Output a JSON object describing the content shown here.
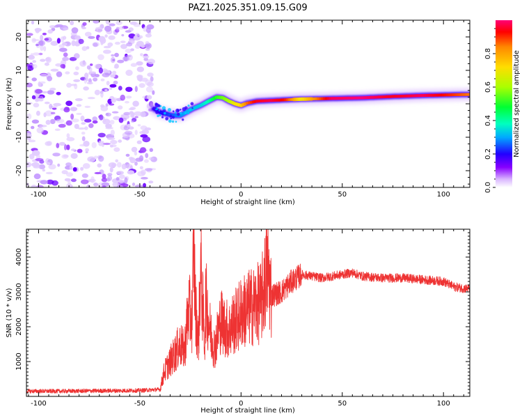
{
  "chart_data": [
    {
      "type": "heatmap",
      "title": "PAZ1.2025.351.09.15.G09",
      "xlabel": "Height of straight line (km)",
      "ylabel": "Frequency (Hz)",
      "xlim": [
        -106,
        113
      ],
      "ylim": [
        -25,
        25
      ],
      "xticks": [
        -100,
        -50,
        0,
        50,
        100
      ],
      "yticks": [
        20,
        10,
        0,
        -10,
        -20
      ],
      "colorbar": {
        "label": "Normalized spectral amplitude",
        "range": [
          0,
          1
        ],
        "ticks": [
          0.0,
          0.2,
          0.4,
          0.6,
          0.8
        ],
        "tick_labels": [
          "0.0",
          "0.2",
          "0.4",
          "0.6",
          "0.8"
        ],
        "colors": [
          "#ffffff",
          "#d8b4ff",
          "#8800ff",
          "#2200ff",
          "#00aaff",
          "#00ffc0",
          "#00ff33",
          "#aaff00",
          "#ffdd00",
          "#ff8800",
          "#ff0000",
          "#ff0077"
        ]
      },
      "ridge": {
        "height_km": [
          -43,
          -40,
          -37,
          -34,
          -30,
          -27,
          -24,
          -20,
          -16,
          -12,
          -9,
          -6,
          -3,
          0,
          3,
          8,
          15,
          22,
          30,
          45,
          60,
          75,
          90,
          105,
          113
        ],
        "frequency_hz": [
          -1.5,
          -2.5,
          -3.0,
          -3.5,
          -3.5,
          -2.5,
          -1.5,
          -0.5,
          0.8,
          2.0,
          1.8,
          0.8,
          0.0,
          -0.5,
          0.2,
          0.8,
          1.0,
          1.2,
          1.4,
          1.6,
          1.8,
          2.2,
          2.5,
          2.7,
          2.8
        ],
        "amplitude": [
          0.18,
          0.2,
          0.22,
          0.25,
          0.28,
          0.3,
          0.32,
          0.33,
          0.38,
          0.5,
          0.55,
          0.6,
          0.7,
          0.72,
          0.85,
          0.95,
          0.97,
          0.92,
          0.7,
          0.98,
          1.0,
          0.95,
          0.98,
          0.9,
          0.85
        ]
      }
    },
    {
      "type": "line",
      "xlabel": "Height of straight line (km)",
      "ylabel": "SNR (10 * v/v)",
      "xlim": [
        -106,
        113
      ],
      "ylim": [
        0,
        4800
      ],
      "xticks": [
        -100,
        -50,
        0,
        50,
        100
      ],
      "yticks": [
        1000,
        2000,
        3000,
        4000
      ],
      "color": "#ee3333",
      "series": [
        {
          "name": "SNR",
          "x": [
            -106,
            -90,
            -70,
            -50,
            -40,
            -38,
            -36,
            -33,
            -30,
            -28,
            -26,
            -24,
            -23.5,
            -22.5,
            -21,
            -20,
            -18,
            -17.5,
            -15,
            -13,
            -10,
            -8,
            -6,
            -4,
            -2,
            0,
            3,
            6,
            10,
            13,
            15,
            20,
            25,
            30,
            35,
            40,
            50,
            55,
            60,
            70,
            80,
            90,
            100,
            105,
            110,
            113
          ],
          "values": [
            150,
            150,
            160,
            170,
            200,
            700,
            900,
            1200,
            1500,
            1300,
            2500,
            2200,
            4700,
            2500,
            1600,
            3800,
            1500,
            2800,
            1800,
            1400,
            2200,
            2000,
            1900,
            2100,
            2200,
            2400,
            2500,
            2600,
            2700,
            3700,
            2900,
            3000,
            3300,
            3500,
            3450,
            3400,
            3500,
            3550,
            3450,
            3400,
            3400,
            3350,
            3300,
            3150,
            3100,
            3100
          ]
        }
      ]
    }
  ]
}
